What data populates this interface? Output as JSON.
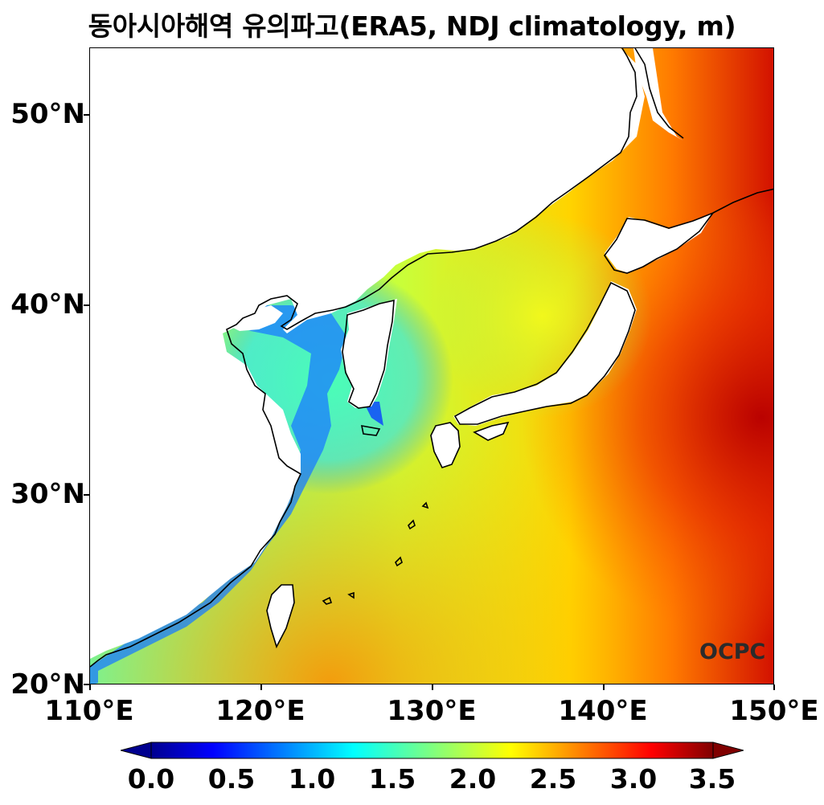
{
  "title": "동아시아해역 유의파고(ERA5, NDJ climatology, m)",
  "map": {
    "lat_ticks": [
      "50°N",
      "40°N",
      "30°N",
      "20°N"
    ],
    "lon_ticks": [
      "110°E",
      "120°E",
      "130°E",
      "140°E",
      "150°E"
    ],
    "lon_range": [
      110,
      150
    ],
    "lat_range": [
      20,
      53.5
    ]
  },
  "colorbar": {
    "ticks": [
      "0.0",
      "0.5",
      "1.0",
      "1.5",
      "2.0",
      "2.5",
      "3.0",
      "3.5"
    ],
    "range": [
      0.0,
      3.5
    ],
    "colormap": "jet"
  },
  "logo": "OCPC",
  "colors": {
    "land": "#ffffff",
    "coast": "#000000",
    "ocean_low": "#0000c8",
    "ocean_mid": "#e8ff2a",
    "ocean_high": "#cc1200"
  }
}
